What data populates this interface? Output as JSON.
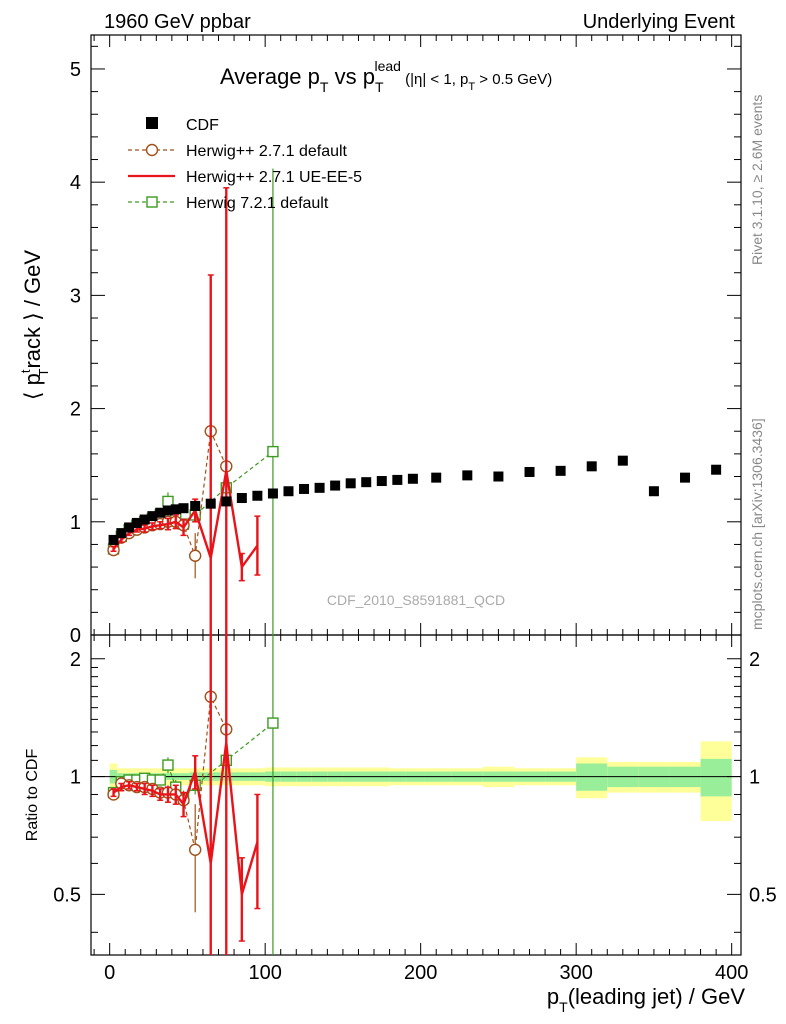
{
  "header": {
    "left": "1960 GeV ppbar",
    "right": "Underlying Event"
  },
  "side_labels": {
    "rivet": "Rivet 3.1.10, ≥ 2.6M events",
    "mcplots": "mcplots.cern.ch [arXiv:1306.3436]"
  },
  "watermark": "CDF_2010_S8591881_QCD",
  "chart_data": {
    "type": "scatter",
    "title": {
      "main": "Average p",
      "sub_T": "T",
      "vs": " vs p",
      "lead": "lead",
      "cut1": " (|η| < 1, p",
      "cut2": " > 0.5 GeV)"
    },
    "xlabel": {
      "p": "p",
      "sub": "T",
      "rest": "(leading jet) / GeV"
    },
    "ylabel": {
      "open": "⟨ p",
      "sup": "t",
      "sub": "T",
      "rest": "rack ⟩ / GeV"
    },
    "ratio_ylabel": "Ratio to CDF",
    "xlim": [
      -12,
      406
    ],
    "ylim": [
      0,
      5.3
    ],
    "ratio_ylim": [
      0.35,
      2.3
    ],
    "x_ticks": [
      0,
      100,
      200,
      300,
      400
    ],
    "x_tick_labels": [
      "0",
      "100",
      "200",
      "300",
      "400"
    ],
    "y_ticks": [
      0,
      1,
      2,
      3,
      4,
      5
    ],
    "y_tick_labels": [
      "0",
      "1",
      "2",
      "3",
      "4",
      "5"
    ],
    "ratio_ticks": [
      0.5,
      1,
      2
    ],
    "ratio_tick_labels": [
      "0.5",
      "1",
      "2"
    ],
    "legend": [
      {
        "label": "CDF",
        "color": "#000000",
        "marker": "square-filled"
      },
      {
        "label": "Herwig++ 2.7.1 default",
        "color": "#a0521a",
        "marker": "circle-open",
        "style": "dashed"
      },
      {
        "label": "Herwig++ 2.7.1 UE-EE-5",
        "color": "#e8141a",
        "marker": "none",
        "style": "solid"
      },
      {
        "label": "Herwig 7.2.1 default",
        "color": "#3d9a22",
        "marker": "square-open",
        "style": "dashed"
      }
    ],
    "data": {
      "x": [
        2.5,
        7.5,
        12.5,
        17.5,
        22.5,
        27.5,
        32.5,
        37.5,
        42.5,
        47.5,
        55,
        65,
        75,
        85,
        95,
        105,
        115,
        125,
        135,
        145,
        155,
        165,
        175,
        185,
        195,
        210,
        230,
        250,
        270,
        290,
        310,
        330,
        350,
        370,
        390
      ],
      "y": [
        0.84,
        0.9,
        0.95,
        0.99,
        1.02,
        1.05,
        1.08,
        1.1,
        1.11,
        1.12,
        1.14,
        1.16,
        1.18,
        1.21,
        1.23,
        1.25,
        1.27,
        1.29,
        1.3,
        1.32,
        1.34,
        1.35,
        1.36,
        1.37,
        1.38,
        1.39,
        1.41,
        1.4,
        1.44,
        1.45,
        1.49,
        1.54,
        1.27,
        1.39,
        1.46
      ],
      "band_inner": [
        0.04,
        0.02,
        0.02,
        0.02,
        0.02,
        0.02,
        0.02,
        0.02,
        0.02,
        0.02,
        0.025,
        0.025,
        0.025,
        0.025,
        0.025,
        0.03,
        0.03,
        0.03,
        0.03,
        0.03,
        0.03,
        0.03,
        0.03,
        0.03,
        0.03,
        0.03,
        0.03,
        0.03,
        0.03,
        0.03,
        0.08,
        0.06,
        0.06,
        0.06,
        0.11
      ],
      "band_outer": [
        0.08,
        0.05,
        0.05,
        0.05,
        0.05,
        0.05,
        0.05,
        0.05,
        0.05,
        0.05,
        0.05,
        0.05,
        0.05,
        0.05,
        0.05,
        0.055,
        0.055,
        0.055,
        0.055,
        0.055,
        0.055,
        0.055,
        0.055,
        0.05,
        0.05,
        0.05,
        0.05,
        0.06,
        0.05,
        0.05,
        0.12,
        0.09,
        0.09,
        0.09,
        0.23
      ]
    },
    "series": [
      {
        "name": "Herwig++ 2.7.1 default",
        "x": [
          2.5,
          7.5,
          12.5,
          17.5,
          22.5,
          27.5,
          32.5,
          37.5,
          42.5,
          47.5,
          55,
          65,
          75
        ],
        "y": [
          0.75,
          0.86,
          0.9,
          0.93,
          0.95,
          0.97,
          0.98,
          1.0,
          1.0,
          0.97,
          0.7,
          1.8,
          1.49
        ],
        "err": [
          0.02,
          0.02,
          0.02,
          0.02,
          0.02,
          0.03,
          0.03,
          0.05,
          0.06,
          0.05,
          0.2,
          0.35,
          0.1
        ]
      },
      {
        "name": "Herwig++ 2.7.1 UE-EE-5",
        "x": [
          2.5,
          7.5,
          12.5,
          17.5,
          22.5,
          27.5,
          32.5,
          37.5,
          42.5,
          47.5,
          55,
          65,
          75,
          85,
          95
        ],
        "y": [
          0.76,
          0.84,
          0.9,
          0.93,
          0.94,
          0.96,
          0.97,
          0.98,
          1.0,
          0.95,
          1.1,
          0.68,
          1.45,
          0.6,
          0.79
        ],
        "err": [
          0.02,
          0.02,
          0.02,
          0.02,
          0.03,
          0.03,
          0.03,
          0.05,
          0.06,
          0.07,
          0.1,
          2.5,
          2.5,
          0.12,
          0.26
        ]
      },
      {
        "name": "Herwig 7.2.1 default",
        "x": [
          2.5,
          7.5,
          12.5,
          17.5,
          22.5,
          27.5,
          32.5,
          37.5,
          42.5,
          47.5,
          55,
          75,
          105
        ],
        "y": [
          0.76,
          0.87,
          0.93,
          0.97,
          1.0,
          1.03,
          1.06,
          1.18,
          1.04,
          0.98,
          1.06,
          1.3,
          1.62
        ],
        "err": [
          0.02,
          0.02,
          0.02,
          0.02,
          0.02,
          0.03,
          0.03,
          0.08,
          0.05,
          0.05,
          0.06,
          0.05,
          2.5
        ]
      }
    ],
    "ratio": {
      "Herwig++ 2.7.1 default": [
        0.9,
        0.96,
        0.95,
        0.94,
        0.94,
        0.93,
        0.91,
        0.91,
        0.9,
        0.87,
        0.65,
        1.6,
        1.32
      ],
      "Herwig++ 2.7.1 UE-EE-5": [
        0.91,
        0.94,
        0.95,
        0.94,
        0.93,
        0.92,
        0.9,
        0.9,
        0.9,
        0.85,
        1.03,
        0.6,
        1.22,
        0.5,
        0.68
      ],
      "Herwig 7.2.1 default": [
        0.91,
        0.97,
        0.98,
        0.98,
        0.99,
        0.98,
        0.98,
        1.07,
        0.94,
        0.88,
        0.95,
        1.1,
        1.37
      ]
    },
    "ratio_err": {
      "Herwig++ 2.7.1 default": [
        0.02,
        0.02,
        0.02,
        0.02,
        0.02,
        0.03,
        0.03,
        0.04,
        0.05,
        0.05,
        0.2,
        0.3,
        0.1
      ],
      "Herwig++ 2.7.1 UE-EE-5": [
        0.02,
        0.02,
        0.02,
        0.02,
        0.03,
        0.03,
        0.03,
        0.04,
        0.05,
        0.06,
        0.1,
        2.0,
        2.0,
        0.12,
        0.22
      ],
      "Herwig 7.2.1 default": [
        0.02,
        0.02,
        0.02,
        0.02,
        0.02,
        0.03,
        0.03,
        0.05,
        0.04,
        0.04,
        0.05,
        0.05,
        2.0
      ]
    }
  }
}
